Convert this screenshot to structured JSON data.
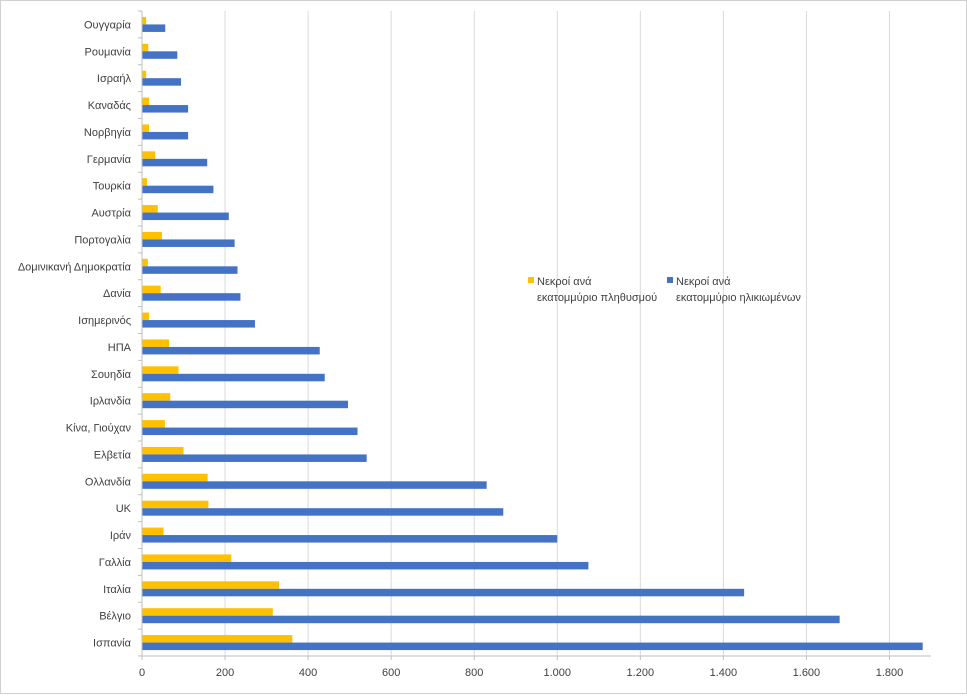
{
  "chart_data": {
    "type": "bar",
    "orientation": "horizontal",
    "categories": [
      "Ουγγαρία",
      "Ρουμανία",
      "Ισραήλ",
      "Καναδάς",
      "Νορβηγία",
      "Γερμανία",
      "Τουρκία",
      "Αυστρία",
      "Πορτογαλία",
      "Δομινικανή Δημοκρατία",
      "Δανία",
      "Ισημερινός",
      "ΗΠΑ",
      "Σουηδία",
      "Ιρλανδία",
      "Κίνα, Γιούχαν",
      "Ελβετία",
      "Ολλανδία",
      "UK",
      "Ιράν",
      "Γαλλία",
      "Ιταλία",
      "Βέλγιο",
      "Ισπανία"
    ],
    "series": [
      {
        "name": "Νεκροί ανά εκατομμύριο πληθυσμού",
        "name_lines": [
          "Νεκροί ανά",
          "εκατομμύριο πληθυσμού"
        ],
        "color": "#FFC000",
        "values": [
          10,
          15,
          10,
          17,
          17,
          32,
          12,
          38,
          48,
          14,
          45,
          17,
          65,
          88,
          68,
          55,
          100,
          158,
          160,
          52,
          215,
          330,
          315,
          362
        ]
      },
      {
        "name": "Νεκροί ανά εκατομμύριο ηλικιωμένων",
        "name_lines": [
          "Νεκροί ανά",
          "εκατομμύριο ηλικιωμένων"
        ],
        "color": "#4472C4",
        "values": [
          56,
          85,
          94,
          111,
          111,
          157,
          172,
          209,
          223,
          230,
          237,
          272,
          428,
          440,
          496,
          519,
          541,
          830,
          870,
          1000,
          1075,
          1450,
          1680,
          1880
        ]
      }
    ],
    "x_ticks": [
      "0",
      "200",
      "400",
      "600",
      "800",
      "1.000",
      "1.200",
      "1.400",
      "1.600",
      "1.800"
    ],
    "xlim": [
      0,
      1900
    ],
    "grid": true,
    "legend_position": "center-right"
  }
}
